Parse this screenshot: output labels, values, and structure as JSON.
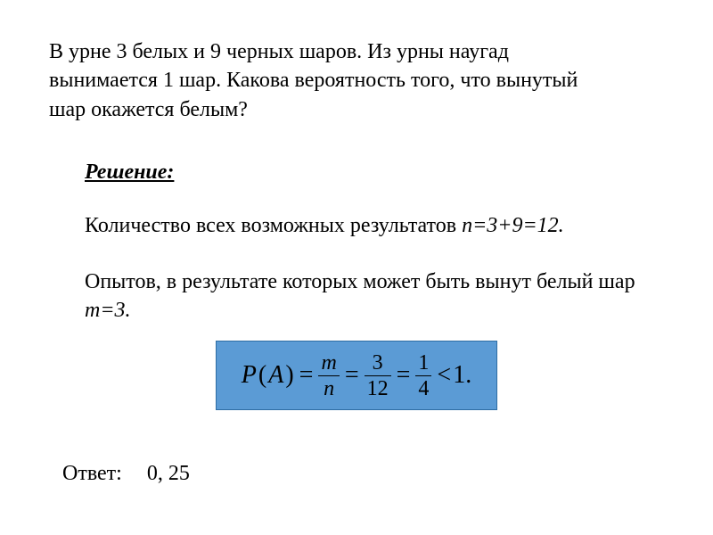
{
  "problem": {
    "text": "В урне 3 белых и 9 черных шаров. Из урны наугад вынимается 1 шар. Какова вероятность того, что вынутый шар окажется белым?"
  },
  "solution": {
    "heading": "Решение:",
    "line1_prefix": "Количество всех возможных результатов ",
    "line1_ital": "n=3+9=12.",
    "line2_prefix": "Опытов, в результате которых может быть вынут белый шар ",
    "line2_ital": "m=3.",
    "formula": {
      "P": "P",
      "lparen": "(",
      "A": "A",
      "rparen": ")",
      "eq": "=",
      "frac1_num": "m",
      "frac1_den": "n",
      "frac2_num": "3",
      "frac2_den": "12",
      "frac3_num": "1",
      "frac3_den": "4",
      "lt": "<",
      "one": "1.",
      "box_bg": "#5b9bd5",
      "box_border": "#2e6da4"
    }
  },
  "answer": {
    "label": "Ответ:",
    "value": "0, 25"
  }
}
